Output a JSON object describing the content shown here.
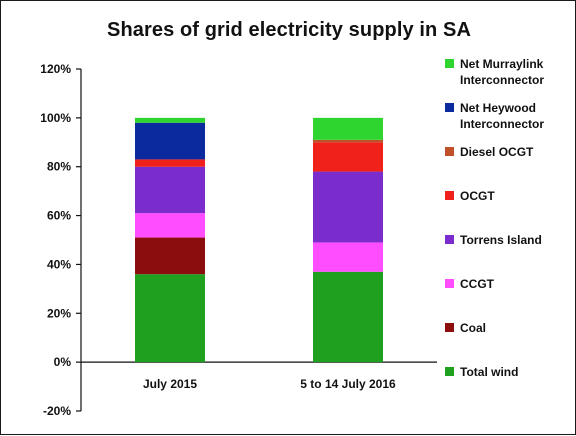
{
  "chart_data": {
    "type": "bar",
    "stacked": true,
    "title": "Shares of grid electricity supply in SA",
    "categories": [
      "July 2015",
      "5 to 14 July 2016"
    ],
    "ylim": [
      -20,
      120
    ],
    "yticks": [
      -20,
      0,
      20,
      40,
      60,
      80,
      100,
      120
    ],
    "ytick_labels": [
      "-20%",
      "0%",
      "20%",
      "40%",
      "60%",
      "80%",
      "100%",
      "120%"
    ],
    "legend_position": "right",
    "grid": false,
    "series": [
      {
        "name": "Total wind",
        "color": "#1fa01f",
        "values": [
          36,
          37
        ]
      },
      {
        "name": "Coal",
        "color": "#8b0d0d",
        "values": [
          15,
          0
        ]
      },
      {
        "name": "CCGT",
        "color": "#ff4dff",
        "values": [
          10,
          12
        ]
      },
      {
        "name": "Torrens Island",
        "color": "#7a2ccc",
        "values": [
          19,
          29
        ]
      },
      {
        "name": "OCGT",
        "color": "#f0201a",
        "values": [
          3,
          12
        ]
      },
      {
        "name": "Diesel OCGT",
        "color": "#c0502a",
        "values": [
          0,
          1
        ]
      },
      {
        "name": "Net Heywood Interconnector",
        "color": "#0a2a9e",
        "values": [
          15,
          0
        ]
      },
      {
        "name": "Net Murraylink Interconnector",
        "color": "#2fd52f",
        "values": [
          2,
          9
        ]
      }
    ],
    "legend_order": [
      "Net Murraylink Interconnector",
      "Net Heywood Interconnector",
      "Diesel OCGT",
      "OCGT",
      "Torrens Island",
      "CCGT",
      "Coal",
      "Total wind"
    ]
  }
}
